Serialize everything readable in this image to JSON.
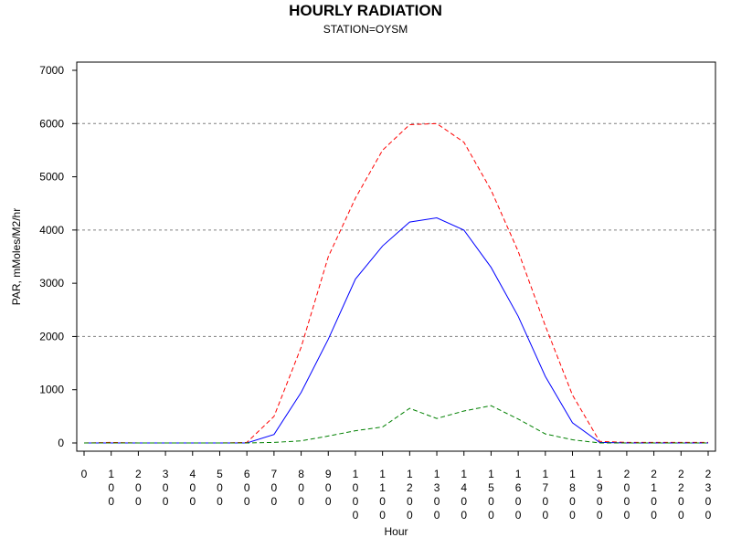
{
  "chart_data": {
    "type": "line",
    "title": "HOURLY RADIATION",
    "subtitle": "STATION=OYSM",
    "xlabel": "Hour",
    "ylabel": "PAR, mMoles/M2/hr",
    "ylim": [
      0,
      7000
    ],
    "yticks": [
      "0",
      "1000",
      "2000",
      "3000",
      "4000",
      "5000",
      "6000",
      "7000"
    ],
    "grid_y": [
      2000,
      4000,
      6000
    ],
    "x": [
      0,
      100,
      200,
      300,
      400,
      500,
      600,
      700,
      800,
      900,
      1000,
      1100,
      1200,
      1300,
      1400,
      1500,
      1600,
      1700,
      1800,
      1900,
      2000,
      2100,
      2200,
      2300
    ],
    "x_tick_labels": [
      "0",
      "100",
      "200",
      "300",
      "400",
      "500",
      "600",
      "700",
      "800",
      "900",
      "1000",
      "1100",
      "1200",
      "1300",
      "1400",
      "1500",
      "1600",
      "1700",
      "1800",
      "1900",
      "2000",
      "2100",
      "2200",
      "2300"
    ],
    "series": [
      {
        "color": "#ff0000",
        "style": "dashed",
        "values": [
          0,
          10,
          0,
          0,
          0,
          0,
          10,
          500,
          1800,
          3500,
          4600,
          5500,
          5980,
          6000,
          5650,
          4750,
          3600,
          2200,
          900,
          30,
          10,
          10,
          10,
          10
        ]
      },
      {
        "color": "#0000ff",
        "style": "solid",
        "values": [
          0,
          0,
          0,
          0,
          0,
          0,
          0,
          160,
          950,
          1950,
          3080,
          3700,
          4150,
          4230,
          4000,
          3300,
          2380,
          1250,
          380,
          10,
          0,
          0,
          0,
          0
        ]
      },
      {
        "color": "#008000",
        "style": "dashed",
        "values": [
          0,
          0,
          0,
          0,
          0,
          0,
          0,
          10,
          40,
          130,
          230,
          300,
          650,
          460,
          600,
          700,
          450,
          170,
          60,
          0,
          0,
          0,
          0,
          0
        ]
      }
    ]
  }
}
